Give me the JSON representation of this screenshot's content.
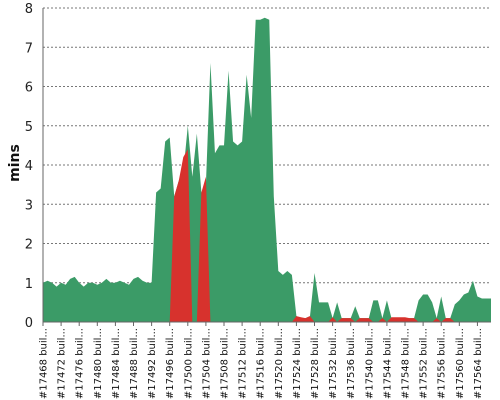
{
  "chart_data": {
    "type": "area",
    "title": "",
    "xlabel": "",
    "ylabel": "mins",
    "ylim": [
      0,
      8
    ],
    "yticks": [
      "0",
      "1",
      "2",
      "3",
      "4",
      "5",
      "6",
      "7",
      "8"
    ],
    "grid": true,
    "x_tick_labels": [
      "#17468 buil...",
      "#17472 buil...",
      "#17476 buil...",
      "#17480 buil...",
      "#17484 buil...",
      "#17488 buil...",
      "#17492 buil...",
      "#17496 buil...",
      "#17500 buil...",
      "#17504 buil...",
      "#17508 buil...",
      "#17512 buil...",
      "#17516 buil...",
      "#17520 buil...",
      "#17524 buil...",
      "#17528 buil...",
      "#17532 buil...",
      "#17536 buil...",
      "#17540 buil...",
      "#17544 buil...",
      "#17548 buil...",
      "#17552 buil...",
      "#17556 buil...",
      "#17560 buil...",
      "#17564 buil..."
    ],
    "x": [
      17468,
      17469,
      17470,
      17471,
      17472,
      17473,
      17474,
      17475,
      17476,
      17477,
      17478,
      17479,
      17480,
      17481,
      17482,
      17483,
      17484,
      17485,
      17486,
      17487,
      17488,
      17489,
      17490,
      17491,
      17492,
      17493,
      17494,
      17495,
      17496,
      17497,
      17498,
      17499,
      17500,
      17501,
      17502,
      17503,
      17504,
      17505,
      17506,
      17507,
      17508,
      17509,
      17510,
      17511,
      17512,
      17513,
      17514,
      17515,
      17516,
      17517,
      17518,
      17519,
      17520,
      17521,
      17522,
      17523,
      17524,
      17525,
      17526,
      17527,
      17528,
      17529,
      17530,
      17531,
      17532,
      17533,
      17534,
      17535,
      17536,
      17537,
      17538,
      17539,
      17540,
      17541,
      17542,
      17543,
      17544,
      17545,
      17546,
      17547,
      17548,
      17549,
      17550,
      17551,
      17552,
      17553,
      17554,
      17555,
      17556,
      17557,
      17558,
      17559,
      17560,
      17561,
      17562,
      17563,
      17564,
      17565,
      17566,
      17567
    ],
    "series": [
      {
        "color": "#3b9b67",
        "values": [
          1.0,
          1.05,
          1.0,
          0.9,
          1.0,
          0.95,
          1.1,
          1.15,
          1.0,
          0.9,
          1.0,
          1.0,
          0.95,
          1.0,
          1.1,
          1.0,
          1.0,
          1.05,
          1.0,
          0.95,
          1.1,
          1.15,
          1.05,
          1.0,
          1.0,
          3.3,
          3.4,
          4.6,
          4.7,
          3.2,
          3.6,
          3.8,
          5.0,
          3.7,
          4.8,
          3.3,
          3.5,
          6.6,
          4.3,
          4.5,
          4.5,
          6.4,
          4.6,
          4.5,
          4.6,
          6.3,
          5.2,
          7.7,
          7.7,
          7.75,
          7.7,
          3.2,
          1.3,
          1.2,
          1.3,
          1.2,
          0.15,
          0.1,
          0.1,
          0.15,
          1.25,
          0.5,
          0.5,
          0.5,
          0.1,
          0.5,
          0.1,
          0.1,
          0.1,
          0.4,
          0.1,
          0.1,
          0.1,
          0.55,
          0.55,
          0.1,
          0.55,
          0.1,
          0.1,
          0.1,
          0.1,
          0.1,
          0.1,
          0.55,
          0.7,
          0.7,
          0.5,
          0.1,
          0.65,
          0.1,
          0.1,
          0.45,
          0.55,
          0.7,
          0.75,
          1.05,
          0.65,
          0.6,
          0.6,
          0.6
        ]
      },
      {
        "color": "#d7322d",
        "values": [
          0,
          0,
          0,
          0,
          0,
          0,
          0,
          0,
          0,
          0,
          0,
          0,
          0,
          0,
          0,
          0,
          0,
          0,
          0,
          0,
          0,
          0,
          0,
          0,
          0,
          0,
          0,
          0,
          0,
          3.2,
          3.6,
          4.2,
          4.4,
          0,
          0,
          3.3,
          3.7,
          0,
          0,
          0,
          0,
          0,
          0,
          0,
          0,
          0,
          0,
          0,
          0,
          0,
          0,
          0,
          0,
          0,
          0,
          0,
          0.15,
          0.12,
          0.1,
          0.15,
          0,
          0,
          0,
          0,
          0.12,
          0,
          0.1,
          0.1,
          0.1,
          0,
          0.1,
          0.1,
          0.1,
          0,
          0,
          0.1,
          0,
          0.12,
          0.12,
          0.12,
          0.12,
          0.1,
          0.1,
          0,
          0,
          0,
          0,
          0.1,
          0,
          0.1,
          0.1,
          0,
          0,
          0,
          0,
          0,
          0,
          0,
          0,
          0
        ]
      }
    ]
  }
}
